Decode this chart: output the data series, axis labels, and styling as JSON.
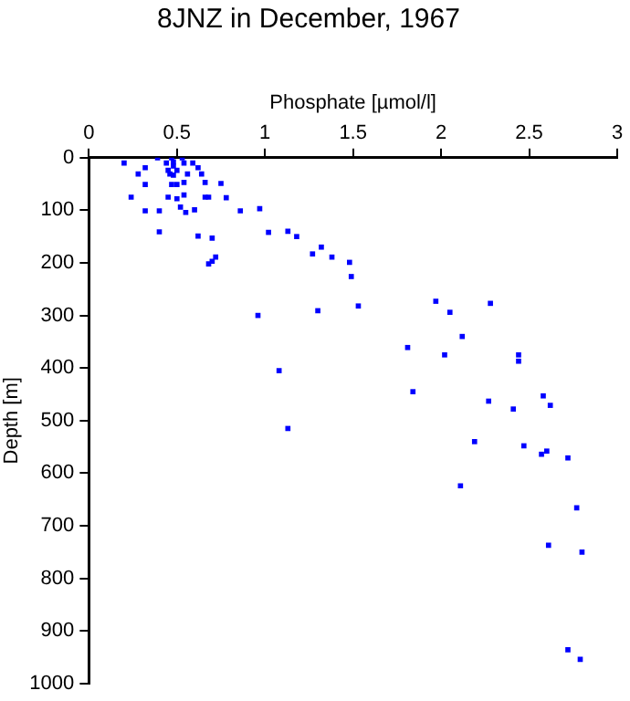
{
  "chart_data": {
    "type": "scatter",
    "title": "8JNZ in December, 1967",
    "xlabel": "Phosphate [µmol/l]",
    "ylabel": "Depth [m]",
    "xlim": [
      0,
      3
    ],
    "xticks": [
      0,
      0.5,
      1,
      1.5,
      2,
      2.5,
      3
    ],
    "ylim": [
      1000,
      0
    ],
    "yticks": [
      0,
      100,
      200,
      300,
      400,
      500,
      600,
      700,
      800,
      900,
      1000
    ],
    "grid": false,
    "legend": false,
    "marker": "square",
    "series": [
      {
        "color": "#0000ff",
        "x": [
          0.2,
          0.28,
          0.32,
          0.32,
          0.24,
          0.32,
          0.4,
          0.4,
          0.39,
          0.44,
          0.45,
          0.47,
          0.48,
          0.48,
          0.5,
          0.46,
          0.48,
          0.47,
          0.5,
          0.45,
          0.5,
          0.52,
          0.55,
          0.54,
          0.54,
          0.53,
          0.54,
          0.59,
          0.62,
          0.64,
          0.56,
          0.66,
          0.68,
          0.6,
          0.66,
          0.75,
          0.78,
          0.86,
          0.97,
          1.02,
          1.13,
          1.18,
          1.27,
          1.32,
          1.38,
          0.62,
          0.7,
          0.72,
          0.68,
          0.7,
          0.96,
          1.3,
          1.08,
          1.48,
          1.49,
          1.53,
          1.13,
          1.97,
          2.05,
          2.28,
          2.12,
          1.81,
          2.02,
          2.44,
          2.44,
          1.84,
          2.27,
          2.41,
          2.58,
          2.62,
          2.19,
          2.47,
          2.57,
          2.6,
          2.72,
          2.11,
          2.77,
          2.61,
          2.8,
          2.72,
          2.79
        ],
        "values": [
          10,
          31,
          19,
          51,
          75,
          101,
          101,
          141,
          0,
          10,
          24,
          0,
          8,
          16,
          24,
          31,
          33,
          51,
          51,
          75,
          78,
          94,
          104,
          71,
          47,
          0,
          10,
          10,
          19,
          31,
          31,
          75,
          75,
          99,
          47,
          49,
          76,
          101,
          97,
          142,
          140,
          150,
          183,
          170,
          189,
          149,
          153,
          189,
          202,
          197,
          300,
          291,
          405,
          199,
          226,
          282,
          515,
          273,
          294,
          277,
          340,
          361,
          375,
          375,
          387,
          445,
          463,
          478,
          453,
          471,
          540,
          548,
          564,
          558,
          571,
          624,
          666,
          737,
          750,
          936,
          954
        ]
      }
    ]
  }
}
